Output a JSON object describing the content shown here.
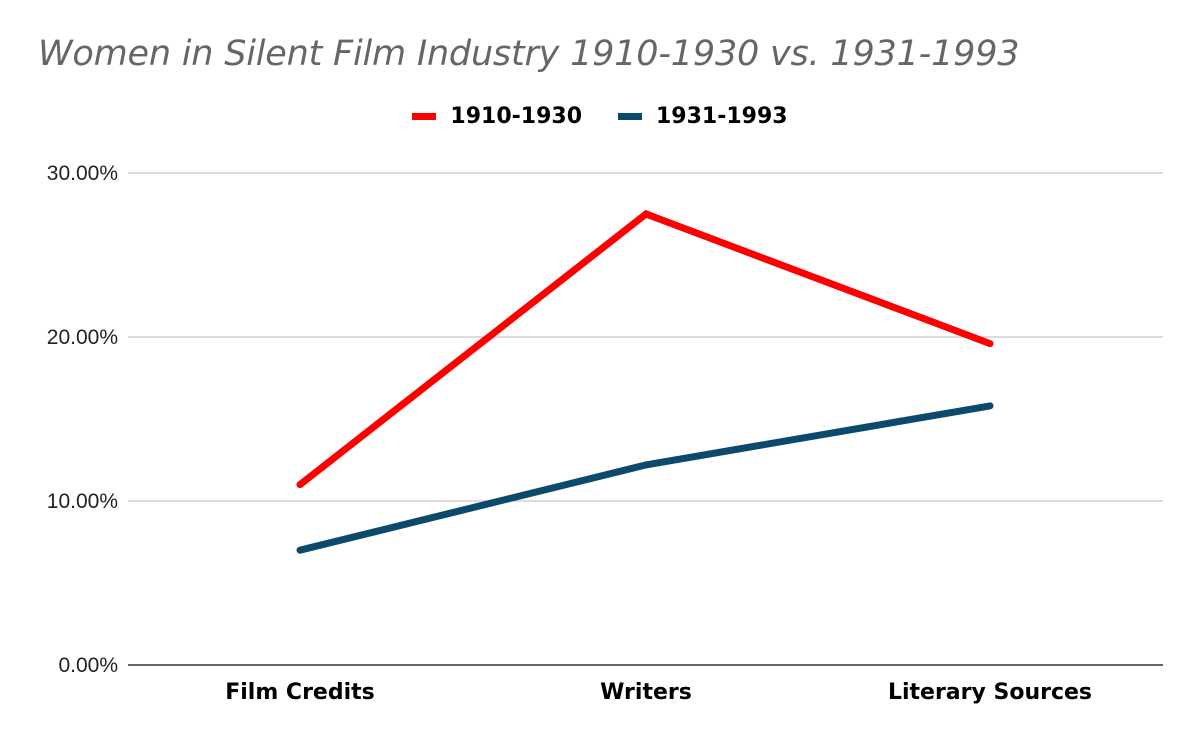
{
  "chart_data": {
    "type": "line",
    "title": "Women in Silent Film Industry 1910-1930 vs. 1931-1993",
    "xlabel": "",
    "ylabel": "",
    "categories": [
      "Film Credits",
      "Writers",
      "Literary Sources"
    ],
    "series": [
      {
        "name": "1910-1930",
        "values": [
          0.11,
          0.275,
          0.196
        ],
        "color": "#ff0000"
      },
      {
        "name": "1931-1993",
        "values": [
          0.07,
          0.122,
          0.158
        ],
        "color": "#0b4a6b"
      }
    ],
    "ylim": [
      0,
      0.3
    ],
    "y_ticks": [
      {
        "value": 0,
        "label": "0.00%"
      },
      {
        "value": 0.1,
        "label": "10.00%"
      },
      {
        "value": 0.2,
        "label": "20.00%"
      },
      {
        "value": 0.3,
        "label": "30.00%"
      }
    ],
    "grid": true,
    "legend_position": "top-center"
  }
}
